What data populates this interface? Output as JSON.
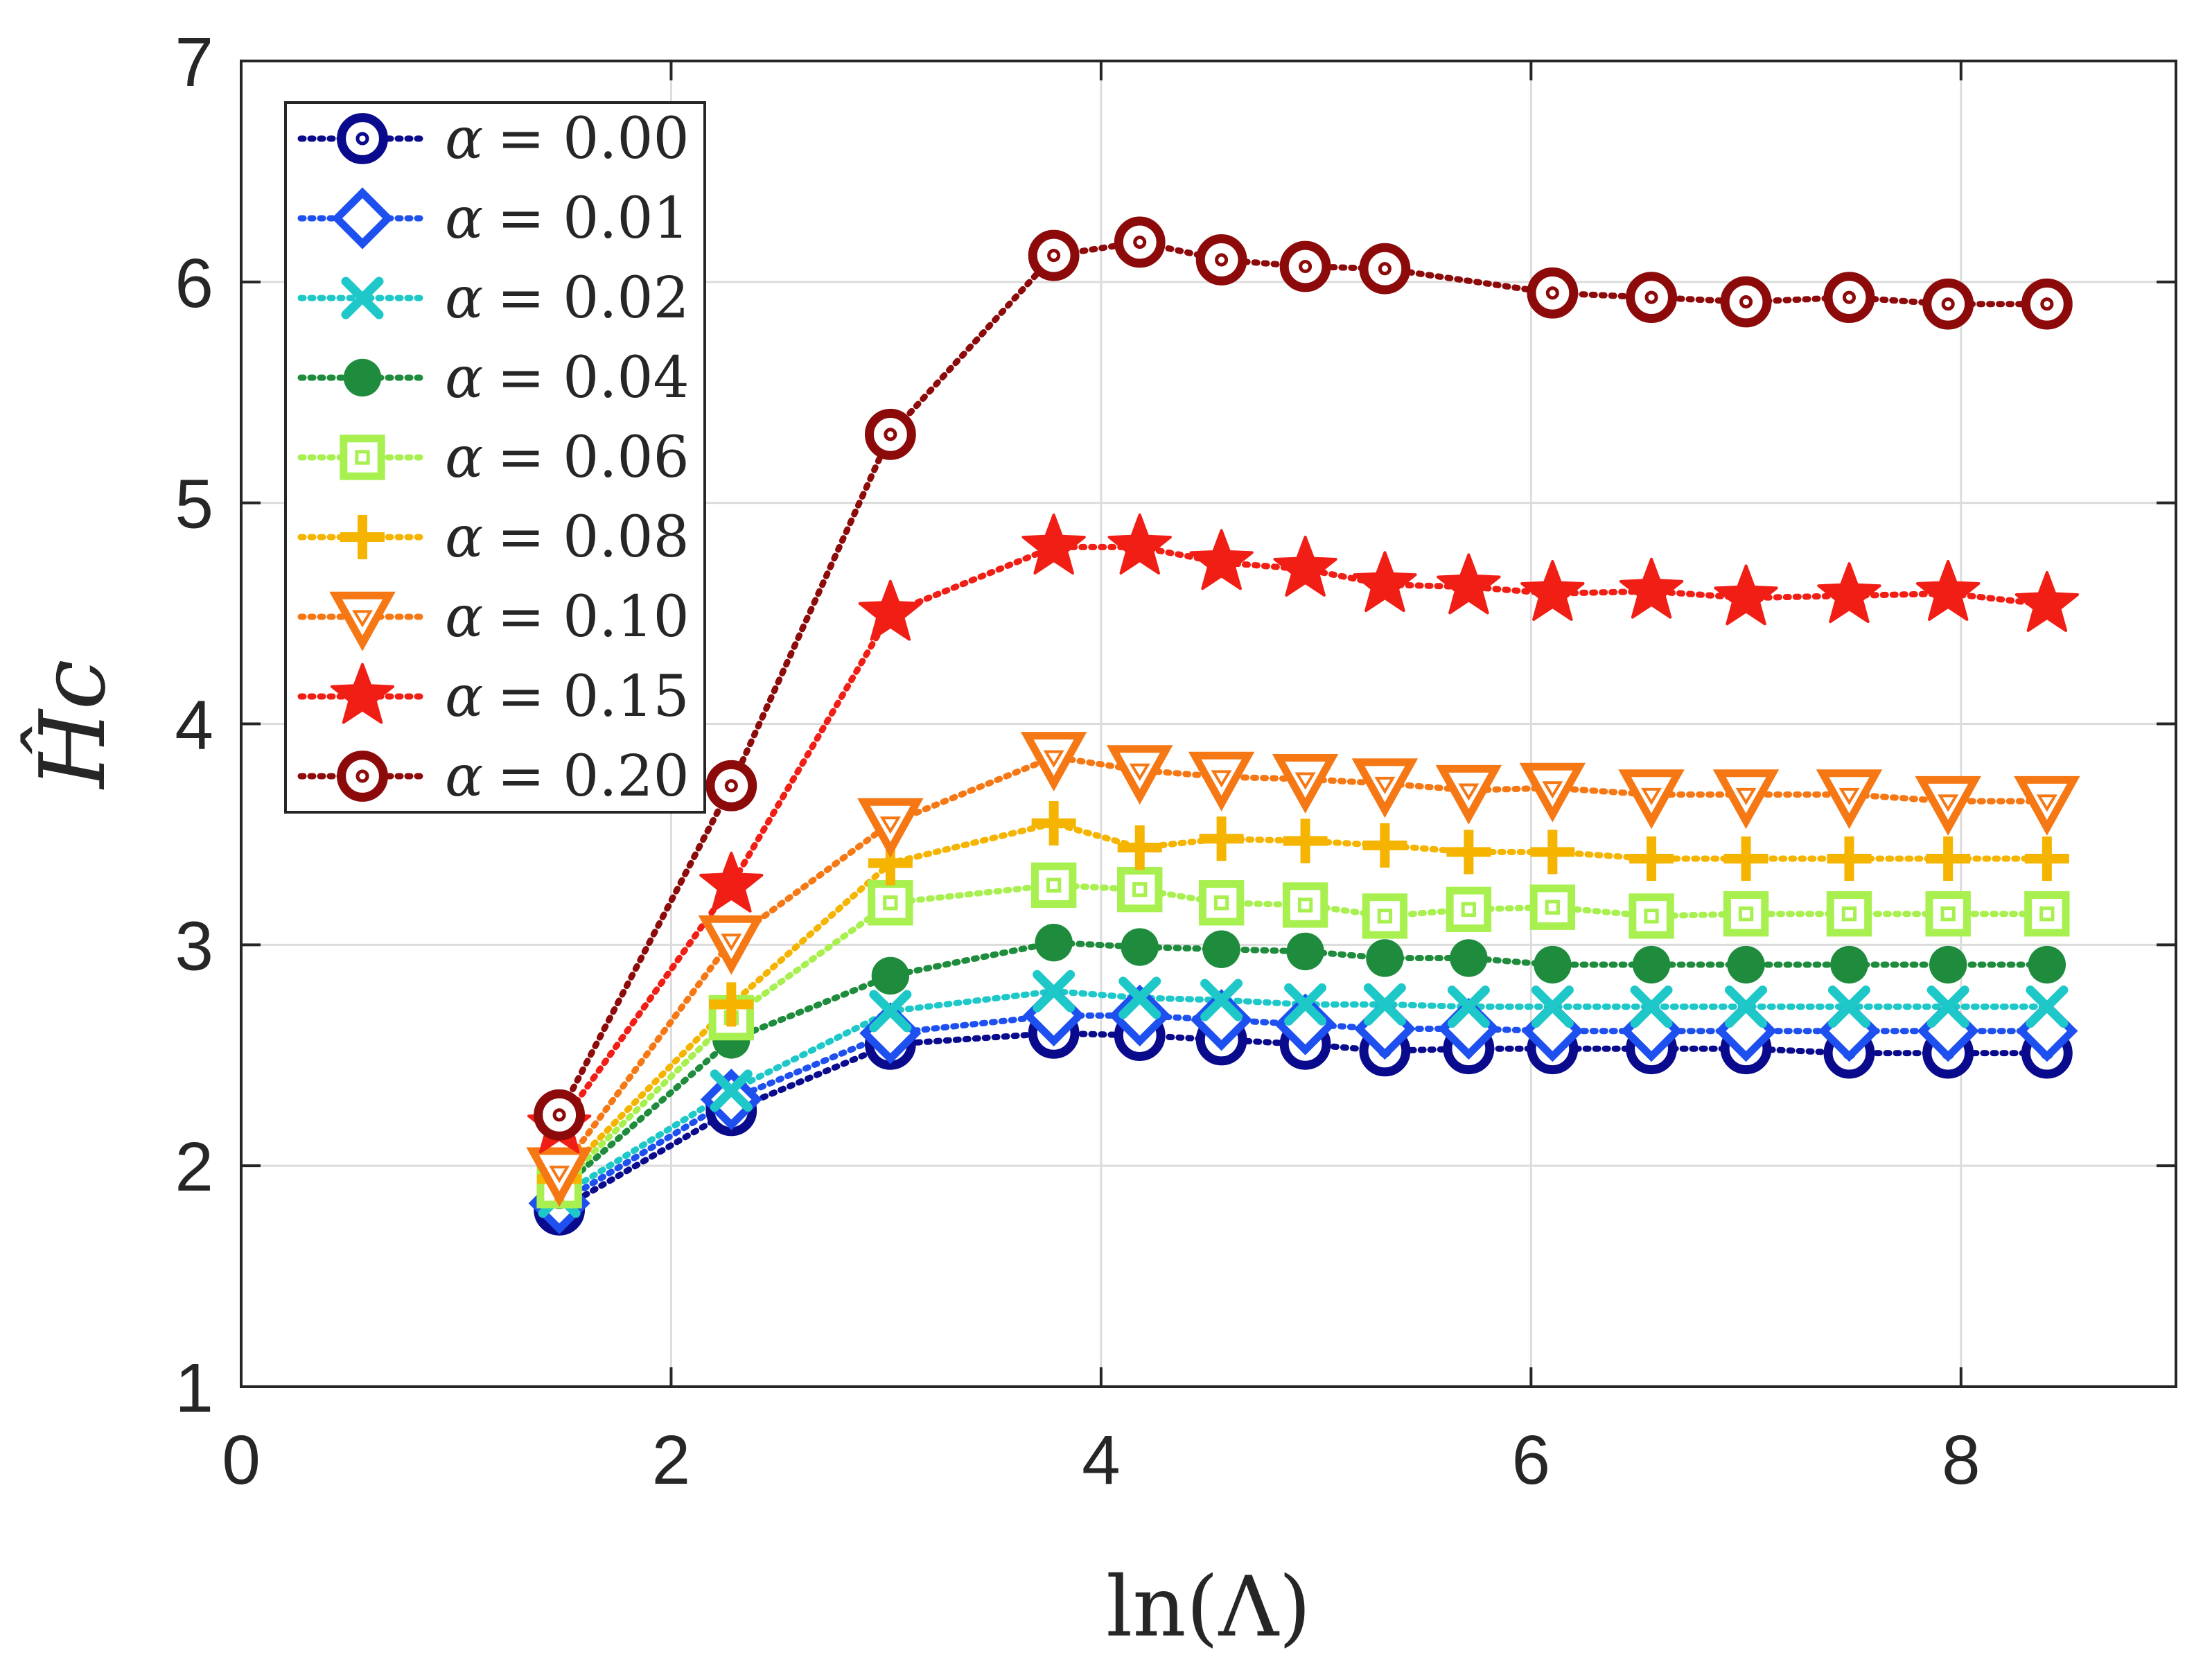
{
  "chart_data": {
    "type": "line",
    "title": "",
    "xlabel": "ln(Λ)",
    "ylabel": "Ĥc",
    "xlim": [
      0,
      9
    ],
    "ylim": [
      1,
      7
    ],
    "xticks": [
      "0",
      "2",
      "4",
      "6",
      "8"
    ],
    "yticks": [
      "1",
      "2",
      "3",
      "4",
      "5",
      "6",
      "7"
    ],
    "grid": true,
    "legend_position": "top-left",
    "x": [
      1.48,
      2.28,
      3.02,
      3.78,
      4.18,
      4.56,
      4.95,
      5.32,
      5.71,
      6.1,
      6.56,
      7.0,
      7.48,
      7.94,
      8.4
    ],
    "series": [
      {
        "name": "α = 0.00",
        "label_var": "α",
        "label_val": "= 0.00",
        "color": "#0a0a8c",
        "marker": "circle",
        "values": [
          1.8,
          2.25,
          2.55,
          2.6,
          2.59,
          2.57,
          2.55,
          2.52,
          2.53,
          2.53,
          2.53,
          2.53,
          2.51,
          2.51,
          2.51
        ]
      },
      {
        "name": "α = 0.01",
        "label_var": "α",
        "label_val": "= 0.01",
        "color": "#1e50f0",
        "marker": "diamond",
        "values": [
          1.83,
          2.3,
          2.6,
          2.68,
          2.68,
          2.66,
          2.64,
          2.62,
          2.62,
          2.61,
          2.61,
          2.61,
          2.61,
          2.61,
          2.61
        ]
      },
      {
        "name": "α = 0.02",
        "label_var": "α",
        "label_val": "= 0.02",
        "color": "#1ec8c8",
        "marker": "x",
        "values": [
          1.86,
          2.34,
          2.7,
          2.79,
          2.76,
          2.75,
          2.73,
          2.73,
          2.72,
          2.72,
          2.72,
          2.72,
          2.72,
          2.72,
          2.72
        ]
      },
      {
        "name": "α = 0.04",
        "label_var": "α",
        "label_val": "= 0.04",
        "color": "#1e8c3c",
        "marker": "dot",
        "values": [
          1.89,
          2.57,
          2.86,
          3.01,
          2.99,
          2.98,
          2.97,
          2.94,
          2.94,
          2.91,
          2.91,
          2.91,
          2.91,
          2.91,
          2.91
        ]
      },
      {
        "name": "α = 0.06",
        "label_var": "α",
        "label_val": "= 0.06",
        "color": "#a8f050",
        "marker": "square",
        "values": [
          1.91,
          2.67,
          3.19,
          3.27,
          3.25,
          3.19,
          3.18,
          3.13,
          3.16,
          3.17,
          3.13,
          3.14,
          3.14,
          3.14,
          3.14
        ]
      },
      {
        "name": "α = 0.08",
        "label_var": "α",
        "label_val": "= 0.08",
        "color": "#f5b400",
        "marker": "plus",
        "values": [
          1.94,
          2.73,
          3.37,
          3.55,
          3.44,
          3.48,
          3.47,
          3.45,
          3.42,
          3.42,
          3.39,
          3.39,
          3.39,
          3.39,
          3.39
        ]
      },
      {
        "name": "α = 0.10",
        "label_var": "α",
        "label_val": "= 0.10",
        "color": "#f57814",
        "marker": "triangle-down",
        "values": [
          1.97,
          3.02,
          3.55,
          3.85,
          3.79,
          3.76,
          3.75,
          3.73,
          3.7,
          3.71,
          3.68,
          3.68,
          3.68,
          3.65,
          3.65
        ]
      },
      {
        "name": "α = 0.15",
        "label_var": "α",
        "label_val": "= 0.15",
        "color": "#f01e14",
        "marker": "star",
        "values": [
          2.18,
          3.27,
          4.5,
          4.8,
          4.8,
          4.73,
          4.7,
          4.63,
          4.62,
          4.59,
          4.6,
          4.57,
          4.58,
          4.59,
          4.54
        ]
      },
      {
        "name": "α = 0.20",
        "label_var": "α",
        "label_val": "= 0.20",
        "color": "#8c0a0a",
        "marker": "circle",
        "values": [
          2.23,
          3.72,
          5.31,
          6.12,
          6.18,
          6.1,
          6.07,
          6.06,
          null,
          5.95,
          5.93,
          5.91,
          5.93,
          5.9,
          5.9
        ]
      }
    ]
  }
}
